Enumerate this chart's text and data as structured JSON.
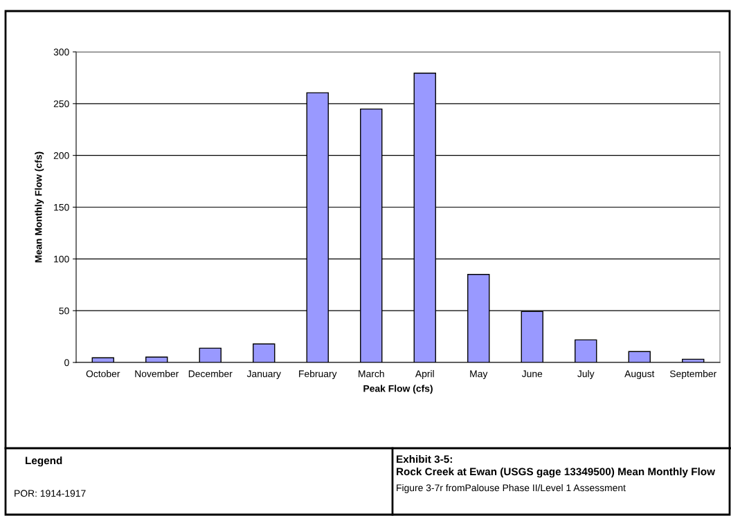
{
  "chart_data": {
    "type": "bar",
    "title": "Exhibit 3-5:",
    "subtitle": "Rock Creek at Ewan (USGS gage 13349500) Mean Monthly Flow",
    "xlabel": "Peak Flow (cfs)",
    "ylabel": "Mean Monthly Flow (cfs)",
    "categories": [
      "October",
      "November",
      "December",
      "January",
      "February",
      "March",
      "April",
      "May",
      "June",
      "July",
      "August",
      "September"
    ],
    "values": [
      4.5,
      5.2,
      13.8,
      17.9,
      260.5,
      244.8,
      279.5,
      85,
      49.2,
      21.8,
      10.5,
      3.1
    ],
    "color": "#9999ff",
    "ylim": [
      0,
      300
    ],
    "yticks": [
      0,
      50,
      100,
      150,
      200,
      250,
      300
    ],
    "grid": "y",
    "annotations": [
      "Legend",
      "POR: 1914-1917",
      "Figure 3-7r fromPalouse Phase II/Level 1 Assessment"
    ]
  }
}
